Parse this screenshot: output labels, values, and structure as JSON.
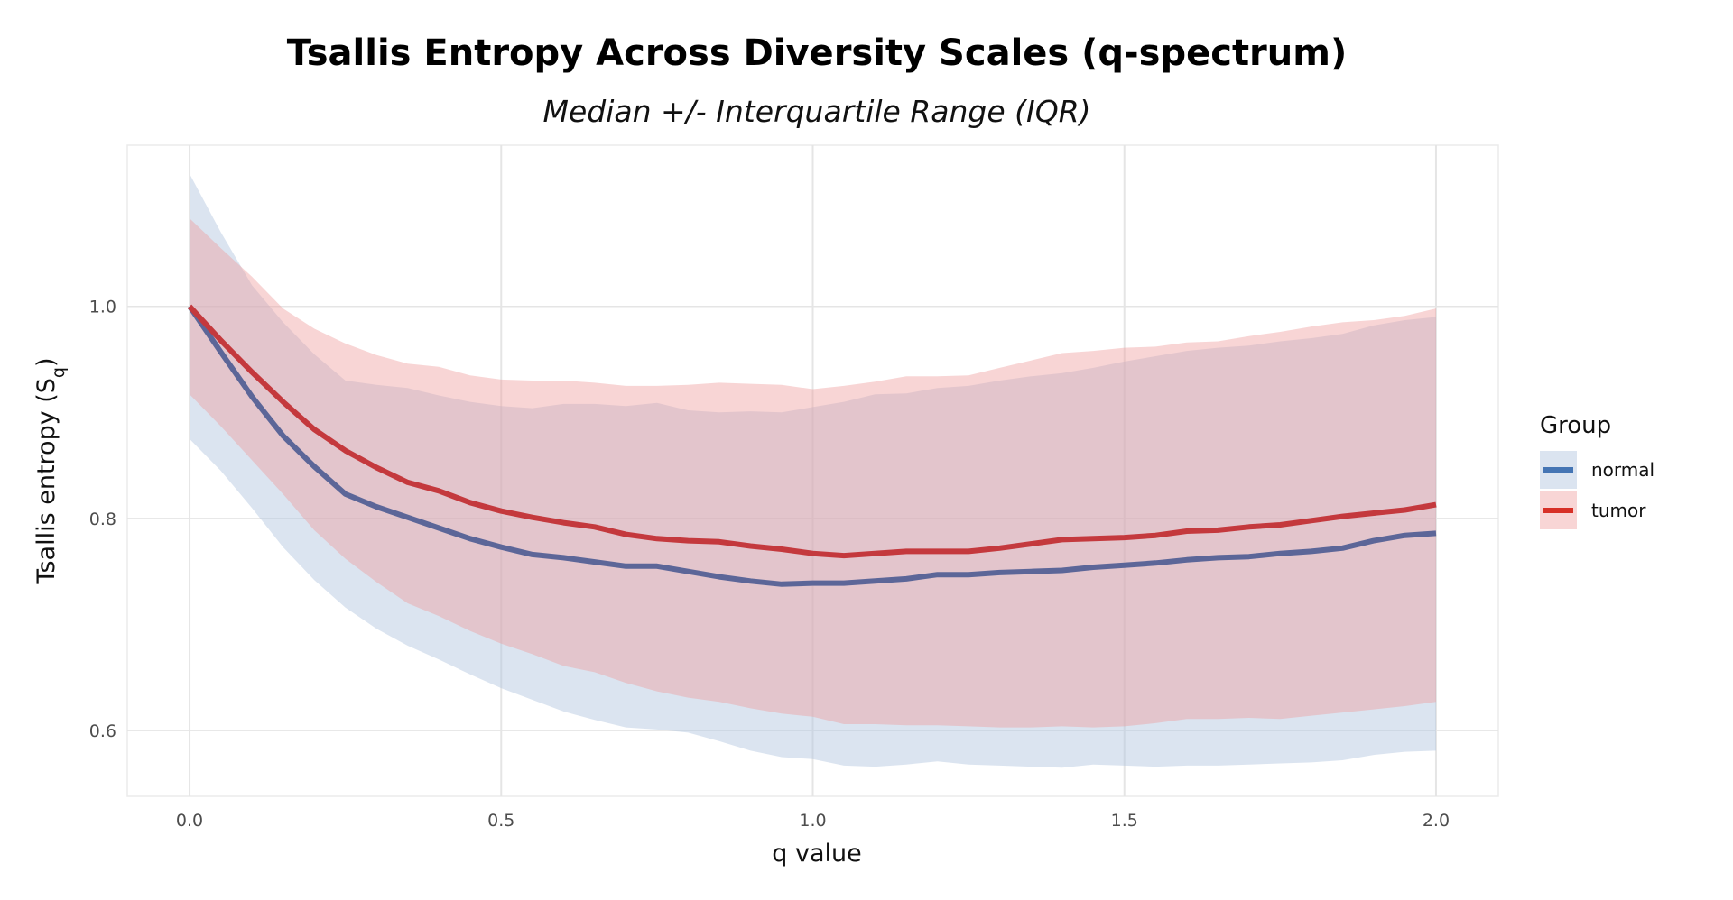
{
  "chart_data": {
    "type": "area",
    "title": "Tsallis Entropy Across Diversity Scales (q-spectrum)",
    "subtitle": "Median +/- Interquartile Range (IQR)",
    "xlabel": "q value",
    "ylabel": "Tsallis entropy (S",
    "ylabel_sub": "q",
    "ylabel_close": ")",
    "xlim": [
      -0.1,
      2.1
    ],
    "ylim": [
      0.538,
      1.152
    ],
    "x_ticks": [
      0.0,
      0.5,
      1.0,
      1.5,
      2.0
    ],
    "x_tick_labels": [
      "0.0",
      "0.5",
      "1.0",
      "1.5",
      "2.0"
    ],
    "y_ticks": [
      0.6,
      0.8,
      1.0
    ],
    "y_tick_labels": [
      "0.6",
      "0.8",
      "1.0"
    ],
    "grid": true,
    "legend": {
      "title": "Group",
      "position": "right"
    },
    "x": [
      0,
      0.05,
      0.1,
      0.15,
      0.2,
      0.25,
      0.3,
      0.35,
      0.4,
      0.45,
      0.5,
      0.55,
      0.6,
      0.65,
      0.7,
      0.75,
      0.8,
      0.85,
      0.9,
      0.95,
      1.0,
      1.05,
      1.1,
      1.15,
      1.2,
      1.25,
      1.3,
      1.35,
      1.4,
      1.45,
      1.5,
      1.55,
      1.6,
      1.65,
      1.7,
      1.75,
      1.8,
      1.85,
      1.9,
      1.95,
      2.0
    ],
    "series": [
      {
        "name": "normal",
        "line_color": "#5c6698",
        "legend_line_color": "#4575b4",
        "fill_color": "#b0c4de",
        "median": [
          1.0,
          0.957,
          0.915,
          0.878,
          0.849,
          0.823,
          0.811,
          0.801,
          0.791,
          0.781,
          0.773,
          0.766,
          0.763,
          0.759,
          0.755,
          0.755,
          0.75,
          0.745,
          0.741,
          0.738,
          0.739,
          0.739,
          0.741,
          0.743,
          0.747,
          0.747,
          0.749,
          0.75,
          0.751,
          0.754,
          0.756,
          0.758,
          0.761,
          0.763,
          0.764,
          0.767,
          0.769,
          0.772,
          0.779,
          0.784,
          0.786
        ],
        "q75": [
          1.125,
          1.07,
          1.02,
          0.985,
          0.955,
          0.93,
          0.926,
          0.923,
          0.916,
          0.91,
          0.906,
          0.904,
          0.908,
          0.908,
          0.906,
          0.909,
          0.902,
          0.9,
          0.901,
          0.9,
          0.905,
          0.91,
          0.917,
          0.918,
          0.923,
          0.925,
          0.93,
          0.934,
          0.937,
          0.942,
          0.948,
          0.953,
          0.958,
          0.961,
          0.963,
          0.967,
          0.97,
          0.974,
          0.982,
          0.987,
          0.99
        ],
        "q25": [
          0.875,
          0.845,
          0.81,
          0.773,
          0.742,
          0.716,
          0.696,
          0.68,
          0.667,
          0.653,
          0.64,
          0.629,
          0.618,
          0.61,
          0.603,
          0.601,
          0.598,
          0.59,
          0.581,
          0.575,
          0.573,
          0.567,
          0.566,
          0.568,
          0.571,
          0.568,
          0.567,
          0.566,
          0.565,
          0.568,
          0.567,
          0.566,
          0.567,
          0.567,
          0.568,
          0.569,
          0.57,
          0.572,
          0.577,
          0.58,
          0.581
        ]
      },
      {
        "name": "tumor",
        "line_color": "#c4393d",
        "legend_line_color": "#d73027",
        "fill_color": "#ef9a9a",
        "median": [
          1.0,
          0.968,
          0.938,
          0.91,
          0.884,
          0.864,
          0.848,
          0.834,
          0.826,
          0.815,
          0.807,
          0.801,
          0.796,
          0.792,
          0.785,
          0.781,
          0.779,
          0.778,
          0.774,
          0.771,
          0.767,
          0.765,
          0.767,
          0.769,
          0.769,
          0.769,
          0.772,
          0.776,
          0.78,
          0.781,
          0.782,
          0.784,
          0.788,
          0.789,
          0.792,
          0.794,
          0.798,
          0.802,
          0.805,
          0.808,
          0.813
        ],
        "q75": [
          1.083,
          1.055,
          1.028,
          0.998,
          0.979,
          0.965,
          0.954,
          0.946,
          0.943,
          0.935,
          0.931,
          0.93,
          0.93,
          0.928,
          0.925,
          0.925,
          0.926,
          0.928,
          0.927,
          0.926,
          0.922,
          0.925,
          0.929,
          0.934,
          0.934,
          0.935,
          0.942,
          0.949,
          0.956,
          0.958,
          0.961,
          0.962,
          0.966,
          0.967,
          0.972,
          0.976,
          0.981,
          0.985,
          0.987,
          0.991,
          0.998
        ],
        "q25": [
          0.917,
          0.887,
          0.855,
          0.823,
          0.789,
          0.762,
          0.74,
          0.72,
          0.708,
          0.694,
          0.682,
          0.672,
          0.661,
          0.655,
          0.645,
          0.637,
          0.631,
          0.627,
          0.621,
          0.616,
          0.613,
          0.606,
          0.606,
          0.605,
          0.605,
          0.604,
          0.603,
          0.603,
          0.604,
          0.603,
          0.604,
          0.607,
          0.611,
          0.611,
          0.612,
          0.611,
          0.614,
          0.617,
          0.62,
          0.623,
          0.627
        ]
      }
    ]
  }
}
